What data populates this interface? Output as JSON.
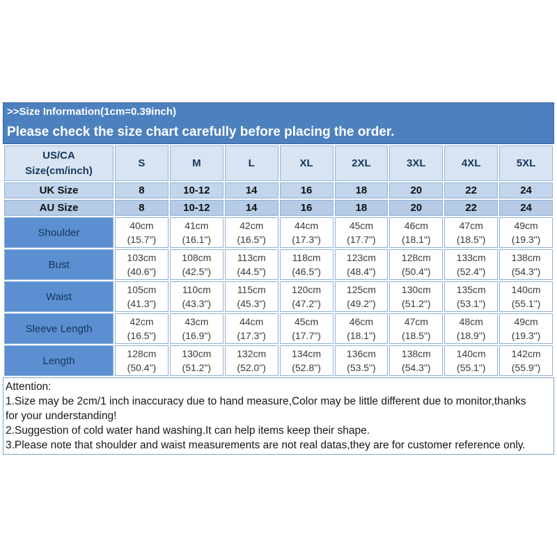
{
  "banner": {
    "title": ">>Size Information(1cm=0.39inch)",
    "subtitle": "Please check the size chart carefully before placing the order."
  },
  "size_table": {
    "corner_header": [
      "US/CA",
      "Size(cm/inch)"
    ],
    "size_columns": [
      "S",
      "M",
      "L",
      "XL",
      "2XL",
      "3XL",
      "4XL",
      "5XL"
    ],
    "region_rows": [
      {
        "label": "UK Size",
        "values": [
          "8",
          "10-12",
          "14",
          "16",
          "18",
          "20",
          "22",
          "24"
        ]
      },
      {
        "label": "AU Size",
        "values": [
          "8",
          "10-12",
          "14",
          "16",
          "18",
          "20",
          "22",
          "24"
        ]
      }
    ],
    "measurement_rows": [
      {
        "label": "Shoulder",
        "cm": [
          "40cm",
          "41cm",
          "42cm",
          "44cm",
          "45cm",
          "46cm",
          "47cm",
          "49cm"
        ],
        "inch": [
          "(15.7\")",
          "(16.1\")",
          "(16.5\")",
          "(17.3\")",
          "(17.7\")",
          "(18.1\")",
          "(18.5\")",
          "(19.3\")"
        ]
      },
      {
        "label": "Bust",
        "cm": [
          "103cm",
          "108cm",
          "113cm",
          "118cm",
          "123cm",
          "128cm",
          "133cm",
          "138cm"
        ],
        "inch": [
          "(40.6\")",
          "(42.5\")",
          "(44.5\")",
          "(46.5\")",
          "(48.4\")",
          "(50.4\")",
          "(52.4\")",
          "(54.3\")"
        ]
      },
      {
        "label": "Waist",
        "cm": [
          "105cm",
          "110cm",
          "115cm",
          "120cm",
          "125cm",
          "130cm",
          "135cm",
          "140cm"
        ],
        "inch": [
          "(41.3\")",
          "(43.3\")",
          "(45.3\")",
          "(47.2\")",
          "(49.2\")",
          "(51.2\")",
          "(53.1\")",
          "(55.1\")"
        ]
      },
      {
        "label": "Sleeve Length",
        "cm": [
          "42cm",
          "43cm",
          "44cm",
          "45cm",
          "46cm",
          "47cm",
          "48cm",
          "49cm"
        ],
        "inch": [
          "(16.5\")",
          "(16.9\")",
          "(17.3\")",
          "(17.7\")",
          "(18.1\")",
          "(18.5\")",
          "(18.9\")",
          "(19.3\")"
        ]
      },
      {
        "label": "Length",
        "cm": [
          "128cm",
          "130cm",
          "132cm",
          "134cm",
          "136cm",
          "138cm",
          "140cm",
          "142cm"
        ],
        "inch": [
          "(50.4\")",
          "(51.2\")",
          "(52.0\")",
          "(52.8\")",
          "(53.5\")",
          "(54.3\")",
          "(55.1\")",
          "(55.9\")"
        ]
      }
    ]
  },
  "attention": {
    "lines": [
      "Attention:",
      "1.Size may be 2cm/1 inch inaccuracy due to hand measure,Color may be little different due to monitor,thanks",
      "for your understanding!",
      "2.Suggestion of cold water hand washing.It can help items keep their shape.",
      "3.Please note that shoulder and waist measurements are not real datas,they are for customer reference only."
    ]
  },
  "colors": {
    "banner_bg": "#4d80bf",
    "banner_text": "#ffffff",
    "header_row_bg": "#d9e4f2",
    "uk_row_bg": "#c2d5ec",
    "au_row_bg": "#b5cbe6",
    "label_col_bg": "#5b8fd1",
    "cell_border": "#8fb0d6",
    "header_text": "#17365d",
    "region_text": "#101010",
    "label_text": "#16365c",
    "data_text": "#3b3b3b",
    "attention_text": "#16161f"
  }
}
